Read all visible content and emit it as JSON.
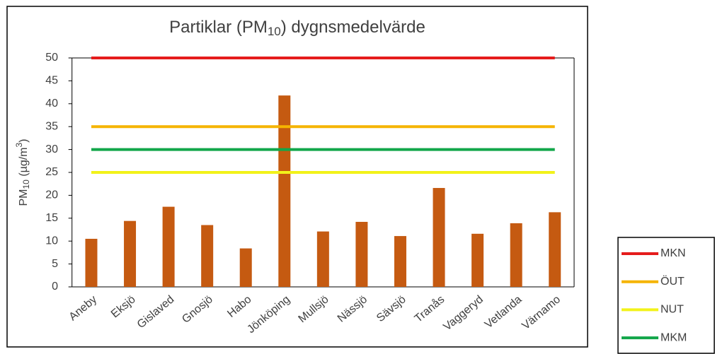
{
  "chart_data": {
    "type": "bar",
    "title": [
      "Partiklar (PM",
      "10",
      ") dygnsmedelvärde"
    ],
    "ylabel": [
      "PM",
      "10",
      " (µg/m",
      "3",
      ")"
    ],
    "categories": [
      "Aneby",
      "Eksjö",
      "Gislaved",
      "Gnosjö",
      "Habo",
      "Jönköping",
      "Mullsjö",
      "Nässjö",
      "Sävsjö",
      "Tranås",
      "Vaggeryd",
      "Vetlanda",
      "Värnamo"
    ],
    "values": [
      10.5,
      14.4,
      17.5,
      13.5,
      8.4,
      41.8,
      12.1,
      14.2,
      11.1,
      21.6,
      11.6,
      13.9,
      16.3
    ],
    "color": "#c55a11",
    "lines": [
      {
        "name": "MKN",
        "color": "#e51c1c",
        "value": 50
      },
      {
        "name": "ÖUT",
        "color": "#f5b400",
        "value": 35
      },
      {
        "name": "NUT",
        "color": "#f2f21a",
        "value": 25
      },
      {
        "name": "MKM",
        "color": "#12a64a",
        "value": 30
      }
    ],
    "ylim": [
      0,
      50
    ],
    "yticks": [
      0,
      5,
      10,
      15,
      20,
      25,
      30,
      35,
      40,
      45,
      50
    ]
  }
}
